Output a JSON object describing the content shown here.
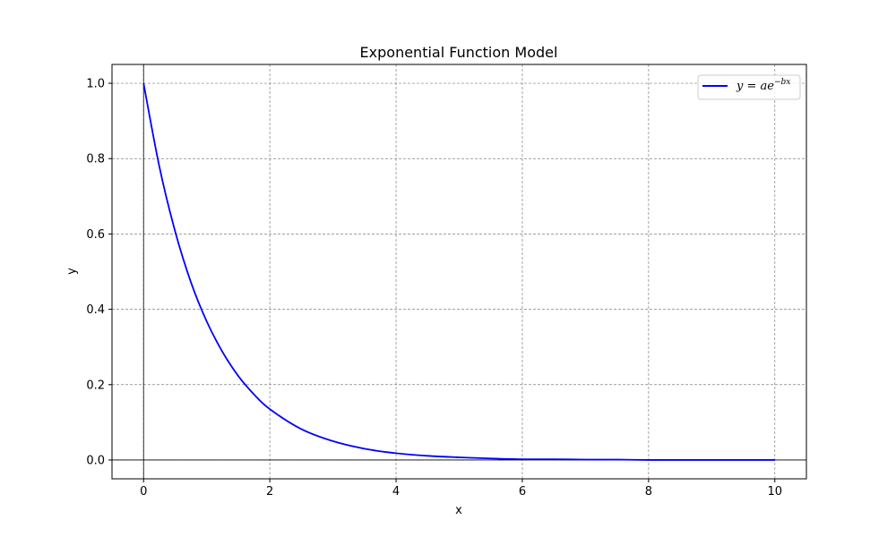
{
  "chart_data": {
    "type": "line",
    "title": "Exponential Function Model",
    "xlabel": "x",
    "ylabel": "y",
    "xlim": [
      -0.5,
      10.5
    ],
    "ylim": [
      -0.05,
      1.05
    ],
    "xticks": [
      0,
      2,
      4,
      6,
      8,
      10
    ],
    "yticks": [
      0.0,
      0.2,
      0.4,
      0.6,
      0.8,
      1.0
    ],
    "xtick_labels": [
      "0",
      "2",
      "4",
      "6",
      "8",
      "10"
    ],
    "ytick_labels": [
      "0.0",
      "0.2",
      "0.4",
      "0.6",
      "0.8",
      "1.0"
    ],
    "grid": true,
    "reference_lines": {
      "x": 0,
      "y": 0
    },
    "legend": {
      "position": "top-right"
    },
    "series": [
      {
        "name": "y = ae^{-bx}",
        "color": "#0000ff",
        "x": [
          0,
          0.25,
          0.5,
          0.75,
          1,
          1.25,
          1.5,
          1.75,
          2,
          2.5,
          3,
          3.5,
          4,
          4.5,
          5,
          5.5,
          6,
          6.5,
          7,
          7.5,
          8,
          8.5,
          9,
          9.5,
          10
        ],
        "y": [
          1.0,
          0.779,
          0.607,
          0.472,
          0.368,
          0.287,
          0.223,
          0.174,
          0.135,
          0.082,
          0.05,
          0.03,
          0.018,
          0.011,
          0.007,
          0.004,
          0.002,
          0.002,
          0.001,
          0.001,
          0.0,
          0.0,
          0.0,
          0.0,
          0.0
        ]
      }
    ]
  }
}
